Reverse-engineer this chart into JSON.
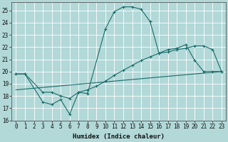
{
  "xlabel": "Humidex (Indice chaleur)",
  "background_color": "#b2d8d8",
  "grid_color": "#ffffff",
  "line_color": "#1a6b6b",
  "xlim": [
    -0.5,
    23.5
  ],
  "ylim": [
    16,
    25.7
  ],
  "xticks": [
    0,
    1,
    2,
    3,
    4,
    5,
    6,
    7,
    8,
    9,
    10,
    11,
    12,
    13,
    14,
    15,
    16,
    17,
    18,
    19,
    20,
    21,
    22,
    23
  ],
  "yticks": [
    16,
    17,
    18,
    19,
    20,
    21,
    22,
    23,
    24,
    25
  ],
  "line1_x": [
    0,
    1,
    3,
    4,
    5,
    6,
    7,
    8,
    10,
    11,
    12,
    13,
    14,
    15,
    16,
    17,
    18,
    19,
    20,
    21,
    22,
    23
  ],
  "line1_y": [
    19.8,
    19.8,
    17.5,
    17.3,
    17.7,
    16.5,
    18.3,
    18.2,
    23.5,
    24.9,
    25.3,
    25.3,
    25.1,
    24.1,
    21.5,
    21.8,
    21.9,
    22.2,
    20.9,
    20.0,
    20.0,
    20.0
  ],
  "line2_x": [
    0,
    1,
    3,
    4,
    5,
    6,
    7,
    8,
    9,
    10,
    11,
    12,
    13,
    14,
    15,
    16,
    17,
    18,
    19,
    20,
    21,
    22,
    23
  ],
  "line2_y": [
    19.8,
    19.8,
    18.3,
    18.3,
    18.0,
    17.8,
    18.3,
    18.5,
    18.8,
    19.2,
    19.7,
    20.1,
    20.5,
    20.9,
    21.2,
    21.5,
    21.6,
    21.8,
    21.9,
    22.1,
    22.1,
    21.8,
    20.0
  ],
  "line3_x": [
    0,
    23
  ],
  "line3_y": [
    18.5,
    20.0
  ]
}
